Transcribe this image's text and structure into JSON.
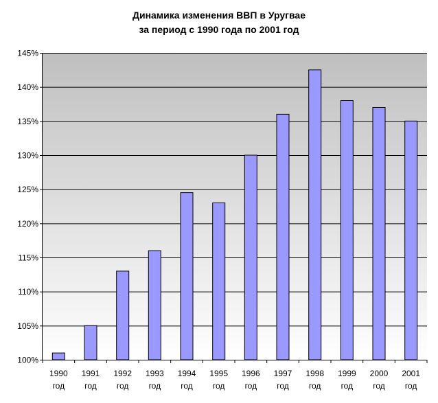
{
  "chart_data": {
    "type": "bar",
    "title_line1": "Динамика изменения ВВП в Уругвае",
    "title_line2": "за период с 1990 года по 2001 год",
    "categories": [
      "1990 год",
      "1991 год",
      "1992 год",
      "1993 год",
      "1994 год",
      "1995 год",
      "1996 год",
      "1997 год",
      "1998 год",
      "1999 год",
      "2000 год",
      "2001 год"
    ],
    "category_years": [
      "1990",
      "1991",
      "1992",
      "1993",
      "1994",
      "1995",
      "1996",
      "1997",
      "1998",
      "1999",
      "2000",
      "2001"
    ],
    "category_suffix": "год",
    "values": [
      101,
      105,
      113,
      116,
      124.5,
      123,
      130,
      136,
      142.5,
      138,
      137,
      135
    ],
    "ylim": [
      100,
      145
    ],
    "yticks": [
      100,
      105,
      110,
      115,
      120,
      125,
      130,
      135,
      140,
      145
    ],
    "ytick_labels": [
      "100%",
      "105%",
      "110%",
      "115%",
      "120%",
      "125%",
      "130%",
      "135%",
      "140%",
      "145%"
    ],
    "grid": true,
    "legend": "none",
    "colors": {
      "bar_fill": "#9999ff",
      "bar_stroke": "#000000",
      "plot_bg_top": "#bfbfbf",
      "plot_bg_bottom": "#ffffff",
      "grid": "#000000"
    }
  }
}
